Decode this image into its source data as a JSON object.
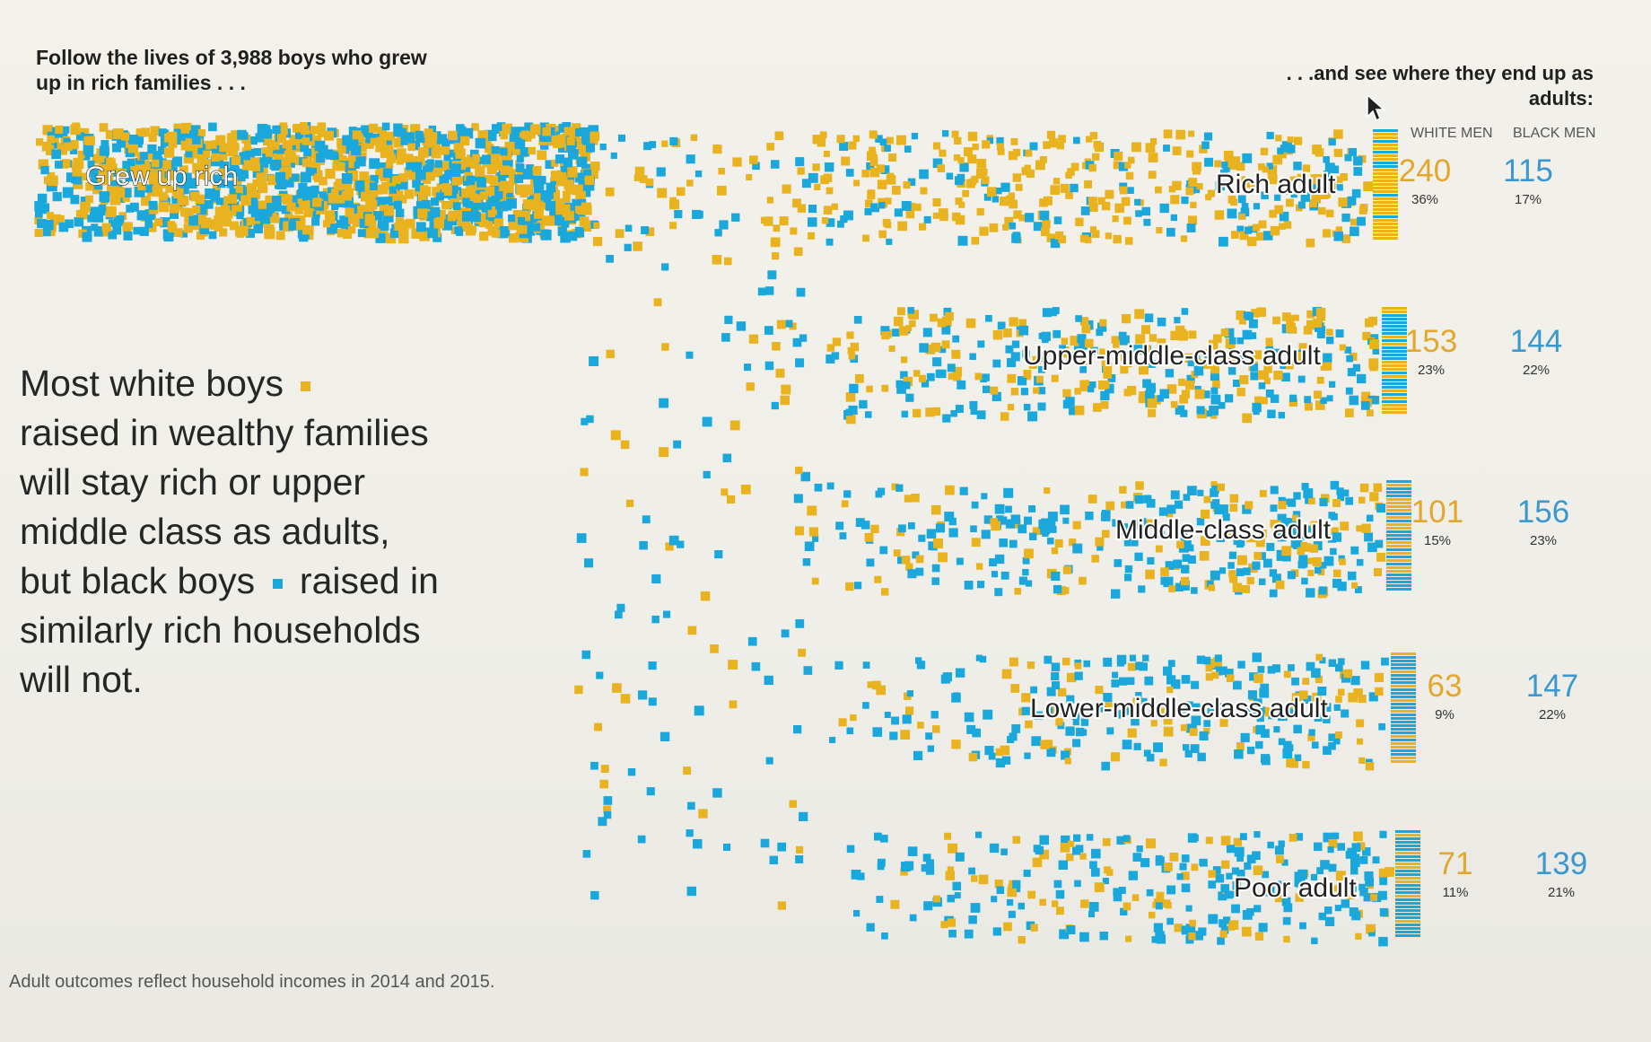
{
  "header": {
    "left_text": "Follow the lives of  3,988  boys who grew up in rich families . . .",
    "right_text": ". . .and see where they end up as adults:"
  },
  "annotation": {
    "part1": "Most white boys",
    "part2": "raised in wealthy families will stay rich or upper middle class as adults, but black boys",
    "part3": "raised in similarly rich households will not."
  },
  "footnote": "Adult outcomes reflect household incomes in 2014 and 2015.",
  "colors": {
    "white": "#e9b21f",
    "black": "#1aa7dc"
  },
  "chart_data": {
    "type": "table",
    "source_label": "Grew up rich",
    "column_headers": [
      "WHITE MEN",
      "BLACK MEN"
    ],
    "rows": [
      {
        "label": "Rich adult",
        "white_count": "240",
        "white_pct": "36%",
        "black_count": "115",
        "black_pct": "17%"
      },
      {
        "label": "Upper-middle-class adult",
        "white_count": "153",
        "white_pct": "23%",
        "black_count": "144",
        "black_pct": "22%"
      },
      {
        "label": "Middle-class adult",
        "white_count": "101",
        "white_pct": "15%",
        "black_count": "156",
        "black_pct": "23%"
      },
      {
        "label": "Lower-middle-class adult",
        "white_count": "63",
        "white_pct": "9%",
        "black_count": "147",
        "black_pct": "22%"
      },
      {
        "label": "Poor adult",
        "white_count": "71",
        "white_pct": "11%",
        "black_count": "139",
        "black_pct": "21%"
      }
    ]
  }
}
